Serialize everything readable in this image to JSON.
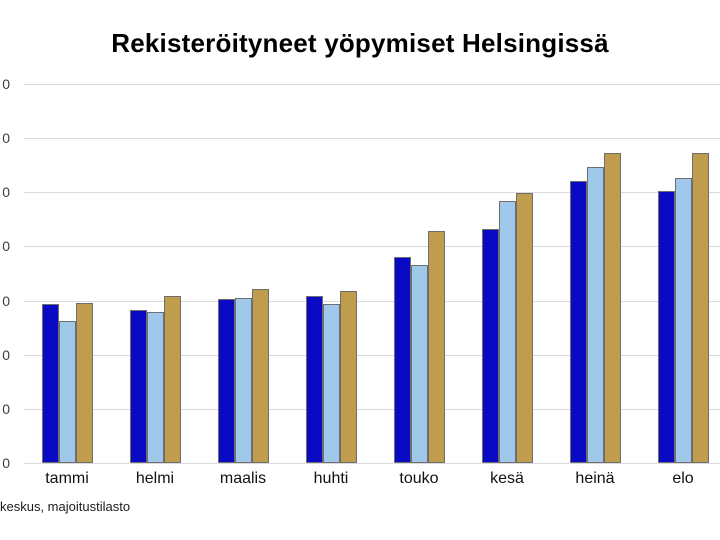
{
  "title": "Rekisteröityneet yöpymiset Helsingissä",
  "source_note": "keskus, majoitustilasto",
  "colors": {
    "background": "#ffffff",
    "gridline": "#dbdbdb",
    "bar_border": "#6e6e6e",
    "series_dark_blue": "#0a0ac4",
    "series_light_blue": "#a0c8ea",
    "series_gold": "#c09c4e"
  },
  "y_axis": {
    "tick_labels_visible": [
      "0",
      "0",
      "0",
      "0",
      "0",
      "0",
      "0",
      "0"
    ],
    "note": "tick labels truncated by left image edge; only the trailing digit 0 of each value is visible"
  },
  "chart_data": {
    "type": "bar",
    "title": "Rekisteröityneet yöpymiset Helsingissä",
    "xlabel": "",
    "ylabel": "",
    "categories": [
      "tammi",
      "helmi",
      "maalis",
      "huhti",
      "touko",
      "kesä",
      "heinä",
      "elo"
    ],
    "series": [
      {
        "name": "series-dark-blue",
        "color": "#0a0ac4",
        "values": [
          2.94,
          2.83,
          3.03,
          3.08,
          3.8,
          4.32,
          5.21,
          5.02
        ]
      },
      {
        "name": "series-light-blue",
        "color": "#a0c8ea",
        "values": [
          2.62,
          2.79,
          3.05,
          2.94,
          3.66,
          4.84,
          5.47,
          5.26
        ]
      },
      {
        "name": "series-gold",
        "color": "#c09c4e",
        "values": [
          2.96,
          3.08,
          3.21,
          3.18,
          4.29,
          4.99,
          5.73,
          5.73
        ]
      }
    ],
    "value_unit": "gridline-intervals (numeric y-axis labels clipped offscreen, 7 equal intervals shown)",
    "ylim": [
      0,
      7
    ],
    "grid": true,
    "legend": "none"
  }
}
